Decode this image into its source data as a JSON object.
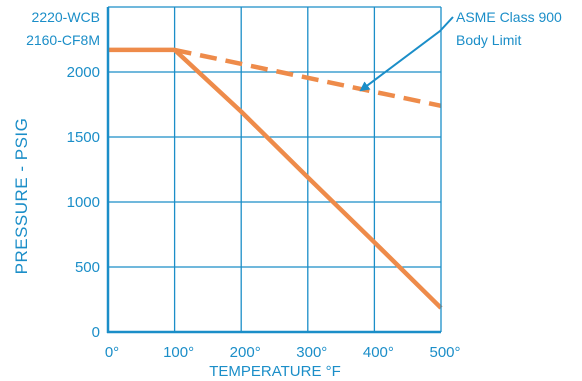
{
  "chart_data": {
    "type": "line",
    "xlabel": "TEMPERATURE °F",
    "ylabel": "PRESSURE - PSIG",
    "xlim": [
      0,
      500
    ],
    "ylim": [
      0,
      2500
    ],
    "x_ticks": [
      0,
      100,
      200,
      300,
      400,
      500
    ],
    "x_tick_labels": [
      "0°",
      "100°",
      "200°",
      "300°",
      "400°",
      "500°"
    ],
    "y_ticks": [
      0,
      500,
      1000,
      1500,
      2000
    ],
    "y_tick_labels": [
      "0",
      "500",
      "1000",
      "1500",
      "2000"
    ],
    "grid": true,
    "top_left_labels": [
      "2220-WCB",
      "2160-CF8M"
    ],
    "series": [
      {
        "name": "",
        "style": "solid",
        "x": [
          0,
          100,
          200,
          300,
          400,
          500
        ],
        "y": [
          2170,
          2170,
          1695,
          1190,
          690,
          185
        ]
      },
      {
        "name": "ASME Class 900 Body Limit",
        "style": "dashed",
        "x": [
          100,
          500
        ],
        "y": [
          2170,
          1740
        ]
      }
    ],
    "annotations": [
      {
        "text_lines": [
          "ASME Class 900",
          "Body Limit"
        ],
        "points_to": {
          "x": 380,
          "y": 1860
        }
      }
    ],
    "colors": {
      "line": "#ee8b4a",
      "axes": "#1b8ec8",
      "grid": "#1b8ec8",
      "text": "#1b8ec8"
    }
  }
}
